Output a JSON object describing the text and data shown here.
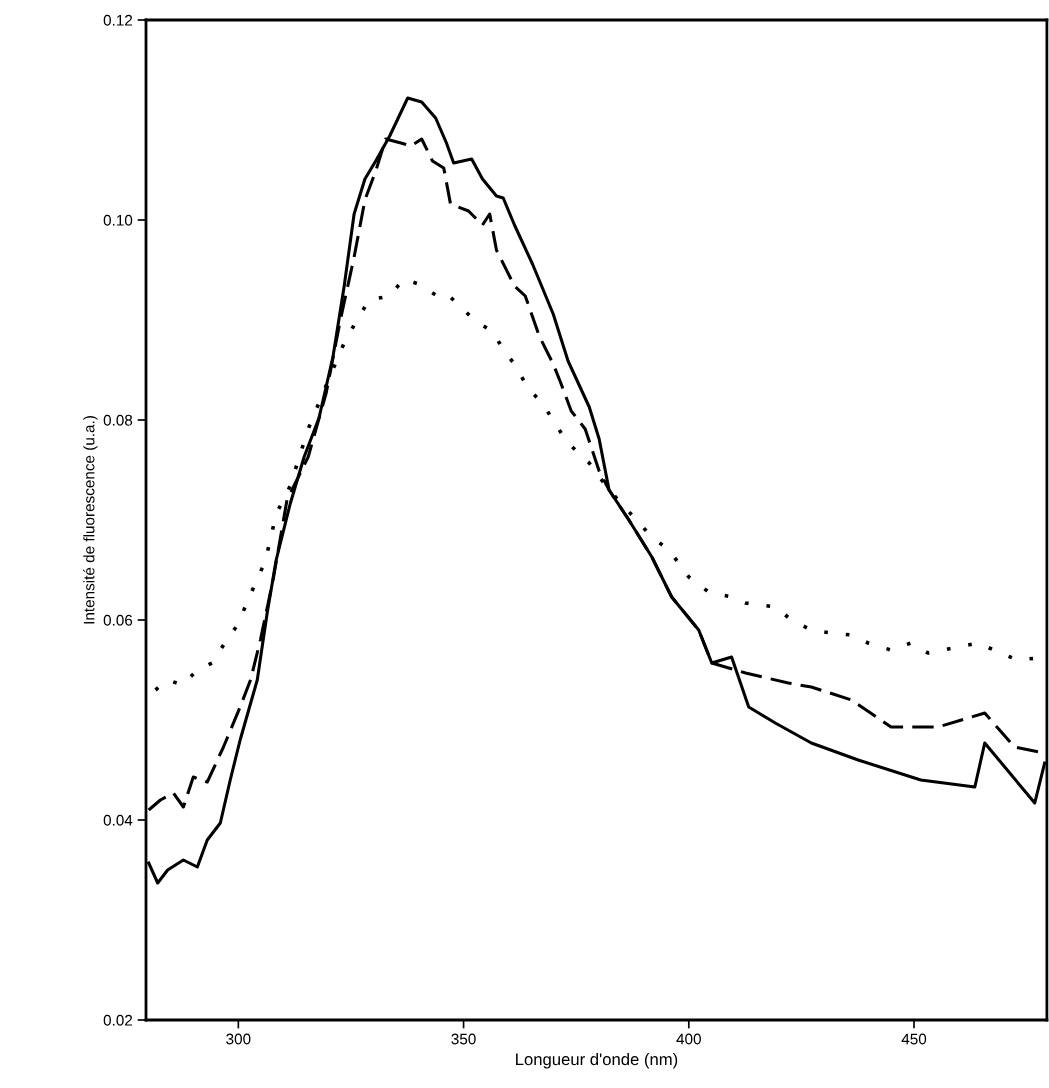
{
  "chart_data": {
    "type": "line",
    "xlabel": "Longueur d'onde (nm)",
    "ylabel": "Intensité de fluorescence (u.a.)",
    "xlim": [
      279.5,
      479.5
    ],
    "ylim": [
      0.02,
      0.12
    ],
    "xticks": [
      300,
      350,
      400,
      450
    ],
    "yticks": [
      0.02,
      0.04,
      0.06,
      0.08,
      {
        "value": 0.1,
        "label": "0.10"
      },
      0.12
    ],
    "marker": "none",
    "series": [
      {
        "color": "#000000",
        "line_style": "solid",
        "x": [
          280.1,
          282.1,
          284.3,
          287.8,
          290.9,
          293.1,
          296.0,
          298.2,
          300.4,
          304.2,
          306.4,
          308.4,
          311.5,
          314.6,
          317.9,
          321.0,
          323.5,
          325.7,
          328.1,
          330.5,
          333.6,
          337.6,
          340.7,
          343.8,
          346.2,
          347.8,
          351.8,
          354.2,
          357.3,
          358.8,
          361.3,
          365.3,
          369.9,
          373.2,
          377.9,
          380.1,
          382.3,
          386.7,
          391.8,
          396.2,
          402.2,
          405.1,
          409.5,
          413.3,
          419.2,
          427.2,
          437.6,
          451.5,
          463.5,
          465.7,
          476.8,
          479.0
        ],
        "values": [
          0.0357,
          0.0337,
          0.035,
          0.036,
          0.0353,
          0.038,
          0.0397,
          0.044,
          0.048,
          0.054,
          0.0607,
          0.066,
          0.0716,
          0.0763,
          0.0802,
          0.0863,
          0.0934,
          0.1006,
          0.1041,
          0.1059,
          0.1084,
          0.1122,
          0.1118,
          0.1102,
          0.1077,
          0.1057,
          0.1061,
          0.1041,
          0.1024,
          0.1022,
          0.0995,
          0.0956,
          0.0906,
          0.0859,
          0.0813,
          0.0781,
          0.073,
          0.07,
          0.0663,
          0.0623,
          0.059,
          0.0557,
          0.0563,
          0.0513,
          0.0497,
          0.0477,
          0.046,
          0.044,
          0.0433,
          0.0477,
          0.0417,
          0.0457
        ]
      },
      {
        "color": "#000000",
        "line_style": "dashed",
        "x": [
          280.1,
          282.7,
          285.6,
          287.8,
          290.0,
          293.1,
          296.7,
          300.4,
          302.7,
          304.9,
          307.7,
          310.8,
          315.5,
          319.5,
          322.6,
          325.7,
          328.1,
          330.5,
          332.7,
          336.1,
          338.3,
          340.7,
          343.1,
          345.6,
          347.1,
          351.1,
          354.2,
          355.8,
          357.3,
          361.3,
          363.7,
          366.8,
          369.9,
          371.5,
          373.9,
          377.0,
          380.1,
          382.3,
          386.7,
          391.8,
          396.2,
          402.2,
          405.1,
          412.6,
          422.1,
          427.2,
          436.1,
          444.9,
          455.3,
          465.7,
          472.3,
          479.0
        ],
        "values": [
          0.041,
          0.042,
          0.0427,
          0.0413,
          0.0443,
          0.0438,
          0.0473,
          0.0513,
          0.054,
          0.058,
          0.064,
          0.072,
          0.0763,
          0.0827,
          0.0899,
          0.0963,
          0.102,
          0.1049,
          0.1081,
          0.1077,
          0.1074,
          0.1081,
          0.1059,
          0.1052,
          0.1016,
          0.1009,
          0.0995,
          0.1006,
          0.097,
          0.0934,
          0.0924,
          0.0884,
          0.0856,
          0.0838,
          0.0809,
          0.0791,
          0.0749,
          0.073,
          0.07,
          0.0663,
          0.0623,
          0.059,
          0.0557,
          0.0547,
          0.0537,
          0.0533,
          0.052,
          0.0493,
          0.0493,
          0.0507,
          0.0473,
          0.0467
        ]
      },
      {
        "color": "#000000",
        "line_style": "dotted",
        "x": [
          281.6,
          284.3,
          287.6,
          290.9,
          294.2,
          296.7,
          299.8,
          303.8,
          306.0,
          308.4,
          311.5,
          315.5,
          320.1,
          323.5,
          325.7,
          329.0,
          333.6,
          336.7,
          340.0,
          343.8,
          346.2,
          349.3,
          352.7,
          356.6,
          358.8,
          361.3,
          364.4,
          367.7,
          369.9,
          373.2,
          377.9,
          382.3,
          391.8,
          395.6,
          400.0,
          404.4,
          409.5,
          412.6,
          419.2,
          422.8,
          427.2,
          431.6,
          436.1,
          439.8,
          444.9,
          449.3,
          453.1,
          459.7,
          464.2,
          469.2,
          473.0,
          477.4
        ],
        "values": [
          0.053,
          0.054,
          0.0535,
          0.055,
          0.0557,
          0.0575,
          0.0595,
          0.0637,
          0.0659,
          0.0706,
          0.0734,
          0.0791,
          0.0841,
          0.0877,
          0.0895,
          0.092,
          0.0924,
          0.0941,
          0.0936,
          0.0925,
          0.0927,
          0.0913,
          0.0899,
          0.0888,
          0.087,
          0.0856,
          0.0831,
          0.0816,
          0.0799,
          0.0777,
          0.0757,
          0.073,
          0.0683,
          0.067,
          0.0643,
          0.0628,
          0.0623,
          0.0617,
          0.0613,
          0.06,
          0.059,
          0.0587,
          0.0585,
          0.0577,
          0.057,
          0.0577,
          0.0567,
          0.0573,
          0.0577,
          0.0567,
          0.056,
          0.0562
        ]
      }
    ]
  }
}
